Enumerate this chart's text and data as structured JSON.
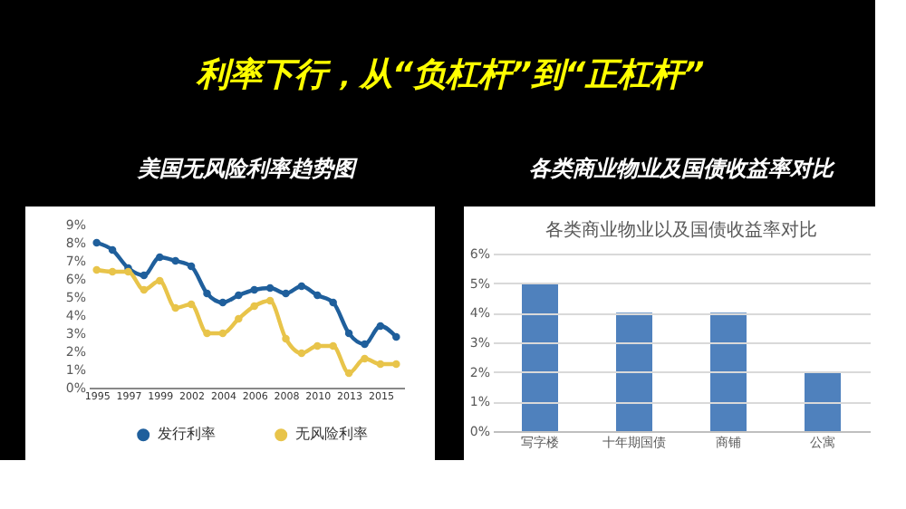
{
  "chart_data": [
    {
      "type": "line",
      "title": "美国无风险利率趋势图",
      "annotations": [
        "利率下行，从“负杠杆”到“正杠杆”"
      ],
      "categories": [
        "1995",
        null,
        "1997",
        null,
        "1999",
        null,
        "2002",
        null,
        "2004",
        null,
        "2006",
        null,
        "2008",
        null,
        "2010",
        null,
        "2013",
        null,
        "2015",
        null
      ],
      "series": [
        {
          "name": "发行利率",
          "color": "#1f5f9c",
          "values": [
            8.0,
            7.6,
            6.6,
            6.2,
            7.2,
            7.0,
            6.7,
            5.2,
            4.7,
            5.1,
            5.4,
            5.5,
            5.2,
            5.6,
            5.1,
            4.7,
            3.0,
            2.4,
            3.4,
            2.8
          ]
        },
        {
          "name": "无风险利率",
          "color": "#e8c44a",
          "values": [
            6.5,
            6.4,
            6.4,
            5.4,
            5.9,
            4.4,
            4.6,
            3.0,
            3.0,
            3.8,
            4.5,
            4.8,
            2.7,
            1.9,
            2.3,
            2.3,
            0.8,
            1.6,
            1.3,
            1.3
          ]
        }
      ],
      "ylim": [
        0,
        9
      ],
      "yticks": [
        {
          "value": 0,
          "label": "0%"
        },
        {
          "value": 1,
          "label": "1%"
        },
        {
          "value": 2,
          "label": "2%"
        },
        {
          "value": 3,
          "label": "3%"
        },
        {
          "value": 4,
          "label": "4%"
        },
        {
          "value": 5,
          "label": "5%"
        },
        {
          "value": 6,
          "label": "6%"
        },
        {
          "value": 7,
          "label": "7%"
        },
        {
          "value": 8,
          "label": "8%"
        },
        {
          "value": 9,
          "label": "9%"
        }
      ],
      "marker": "circle",
      "legend": "bottom",
      "grid": false
    },
    {
      "type": "bar",
      "title": "各类商业物业及国债收益率对比",
      "subtitle": "各类商业物业以及国债收益率对比",
      "categories": [
        "写字楼",
        "十年期国债",
        "商铺",
        "公寓"
      ],
      "values": [
        5,
        4,
        4,
        2
      ],
      "color": "#4f81bd",
      "ylim": [
        0,
        6
      ],
      "yticks": [
        {
          "value": 0,
          "label": "0%"
        },
        {
          "value": 1,
          "label": "1%"
        },
        {
          "value": 2,
          "label": "2%"
        },
        {
          "value": 3,
          "label": "3%"
        },
        {
          "value": 4,
          "label": "4%"
        },
        {
          "value": 5,
          "label": "5%"
        },
        {
          "value": 6,
          "label": "6%"
        }
      ],
      "grid": "y"
    }
  ]
}
